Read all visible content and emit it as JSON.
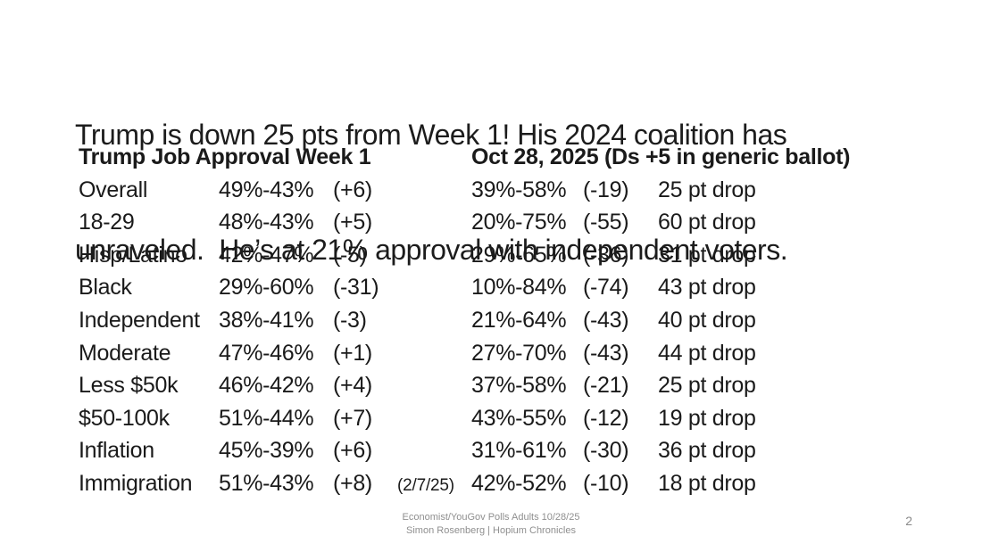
{
  "slide": {
    "title": {
      "line1": "Trump is down 25 pts from Week 1! His 2024 coalition has",
      "line2": "unraveled.  He’s at 21% approval with independent voters."
    },
    "table": {
      "col1_header": "Trump Job Approval Week 1",
      "col2_header": "Oct 28, 2025 (Ds +5 in generic ballot)",
      "rows": [
        {
          "label": "Overall",
          "week1": "49%-43%",
          "week1_net": "(+6)",
          "note": "",
          "oct28": "39%-58%",
          "oct28_net": "(-19)",
          "drop": "25 pt drop"
        },
        {
          "label": "18-29",
          "week1": "48%-43%",
          "week1_net": "(+5)",
          "note": "",
          "oct28": "20%-75%",
          "oct28_net": "(-55)",
          "drop": "60 pt drop"
        },
        {
          "label": "Hisp/Latino",
          "week1": "42%-47%",
          "week1_net": "(-5)",
          "note": "",
          "oct28": "29%-65%",
          "oct28_net": "(-36)",
          "drop": "31 pt drop"
        },
        {
          "label": "Black",
          "week1": "29%-60%",
          "week1_net": "(-31)",
          "note": "",
          "oct28": "10%-84%",
          "oct28_net": "(-74)",
          "drop": "43 pt drop"
        },
        {
          "label": "Independent",
          "week1": "38%-41%",
          "week1_net": "(-3)",
          "note": "",
          "oct28": "21%-64%",
          "oct28_net": "(-43)",
          "drop": "40 pt drop"
        },
        {
          "label": "Moderate",
          "week1": "47%-46%",
          "week1_net": "(+1)",
          "note": "",
          "oct28": "27%-70%",
          "oct28_net": "(-43)",
          "drop": "44 pt drop"
        },
        {
          "label": "Less $50k",
          "week1": "46%-42%",
          "week1_net": "(+4)",
          "note": "",
          "oct28": "37%-58%",
          "oct28_net": "(-21)",
          "drop": "25 pt drop"
        },
        {
          "label": "$50-100k",
          "week1": "51%-44%",
          "week1_net": "(+7)",
          "note": "",
          "oct28": "43%-55%",
          "oct28_net": "(-12)",
          "drop": "19 pt drop"
        },
        {
          "label": "Inflation",
          "week1": "45%-39%",
          "week1_net": "(+6)",
          "note": "",
          "oct28": "31%-61%",
          "oct28_net": "(-30)",
          "drop": "36 pt drop"
        },
        {
          "label": "Immigration",
          "week1": "51%-43%",
          "week1_net": "(+8)",
          "note": "(2/7/25)",
          "oct28": "42%-52%",
          "oct28_net": "(-10)",
          "drop": "18 pt drop"
        }
      ]
    },
    "footer": {
      "source_line1": "Economist/YouGov Polls Adults 10/28/25",
      "source_line2": "Simon Rosenberg | Hopium Chronicles",
      "page_number": "2"
    },
    "colors": {
      "text": "#1a1a1a",
      "muted": "#8f8f8f",
      "background": "#ffffff"
    }
  }
}
